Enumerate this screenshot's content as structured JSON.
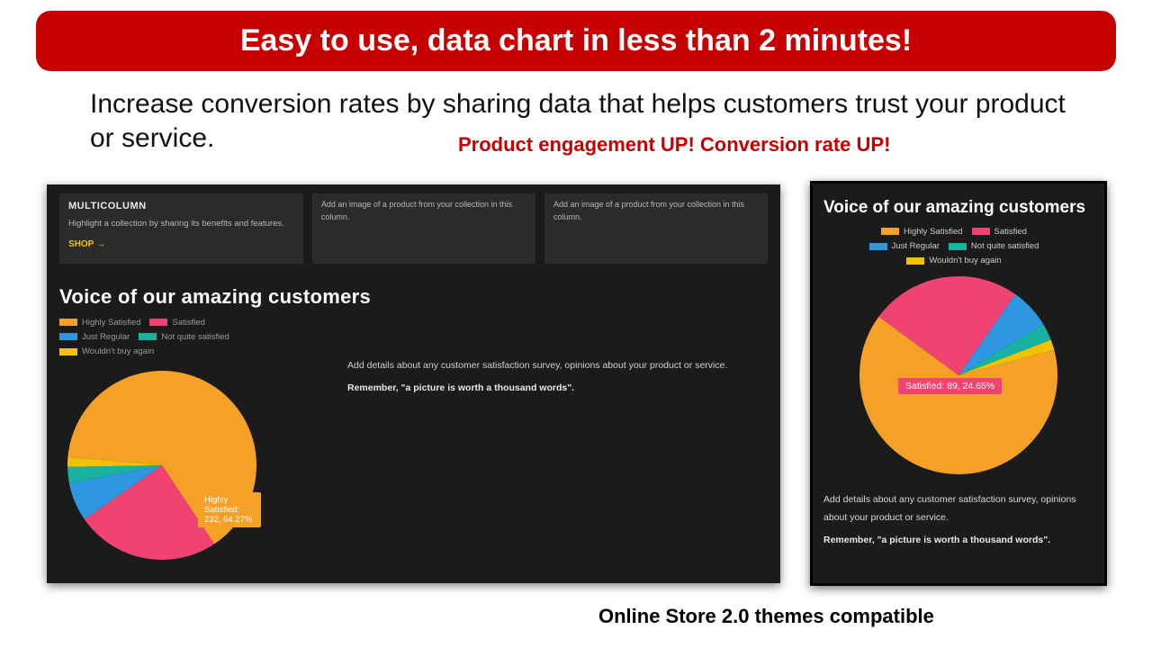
{
  "banner": {
    "text": "Easy to use, data chart in less than 2 minutes!",
    "bg": "#c60000",
    "fg": "#ffffff"
  },
  "subhead": "Increase conversion rates by sharing data that helps customers trust your product or service.",
  "red_callout": "Product engagement UP! Conversion rate UP!",
  "footer_compat": "Online Store 2.0 themes compatible",
  "multicolumn": {
    "title": "MULTICOLUMN",
    "subtitle": "Highlight a collection by sharing its benefits and features.",
    "shop_label": "SHOP →",
    "dummy_col_text": "Add an image of a product from your collection in this column."
  },
  "chart": {
    "type": "pie",
    "title": "Voice of our amazing customers",
    "body_copy": "Add details about any customer satisfaction survey, opinions about your product or service.",
    "remember": "Remember, \"a picture is worth a thousand words\".",
    "legend": [
      {
        "label": "Highly Satisfied",
        "color": "#f5a027"
      },
      {
        "label": "Satisfied",
        "color": "#ef4472"
      },
      {
        "label": "Just Regular",
        "color": "#2f97e0"
      },
      {
        "label": "Not quite satisfied",
        "color": "#18b3a0"
      },
      {
        "label": "Wouldn't buy again",
        "color": "#f2c200"
      }
    ],
    "slices_desktop": [
      {
        "label": "Highly Satisfied",
        "value": 232,
        "pct": 64.27,
        "color": "#f5a027"
      },
      {
        "label": "Satisfied",
        "value": 89,
        "pct": 24.65,
        "color": "#ef4472"
      },
      {
        "label": "Just Regular",
        "value": 24,
        "pct": 6.65,
        "color": "#2f97e0"
      },
      {
        "label": "Not quite satisfied",
        "value": 10,
        "pct": 2.77,
        "color": "#18b3a0"
      },
      {
        "label": "Wouldn't buy again",
        "value": 6,
        "pct": 1.66,
        "color": "#f2c200"
      }
    ],
    "tooltip_desktop": "Highly Satisfied: 232, 64.27%",
    "slices_mobile": [
      {
        "label": "Highly Satisfied",
        "value": 232,
        "pct": 64.27,
        "color": "#f5a027"
      },
      {
        "label": "Satisfied",
        "value": 89,
        "pct": 24.65,
        "color": "#ef4472"
      },
      {
        "label": "Just Regular",
        "value": 24,
        "pct": 6.65,
        "color": "#2f97e0"
      },
      {
        "label": "Not quite satisfied",
        "value": 10,
        "pct": 2.77,
        "color": "#18b3a0"
      },
      {
        "label": "Wouldn't buy again",
        "value": 6,
        "pct": 1.66,
        "color": "#f2c200"
      }
    ],
    "tooltip_mobile": "Satisfied: 89, 24.65%",
    "desktop_rotation_deg": 185,
    "mobile_rotation_deg": -15,
    "background": "#1b1b1b"
  }
}
